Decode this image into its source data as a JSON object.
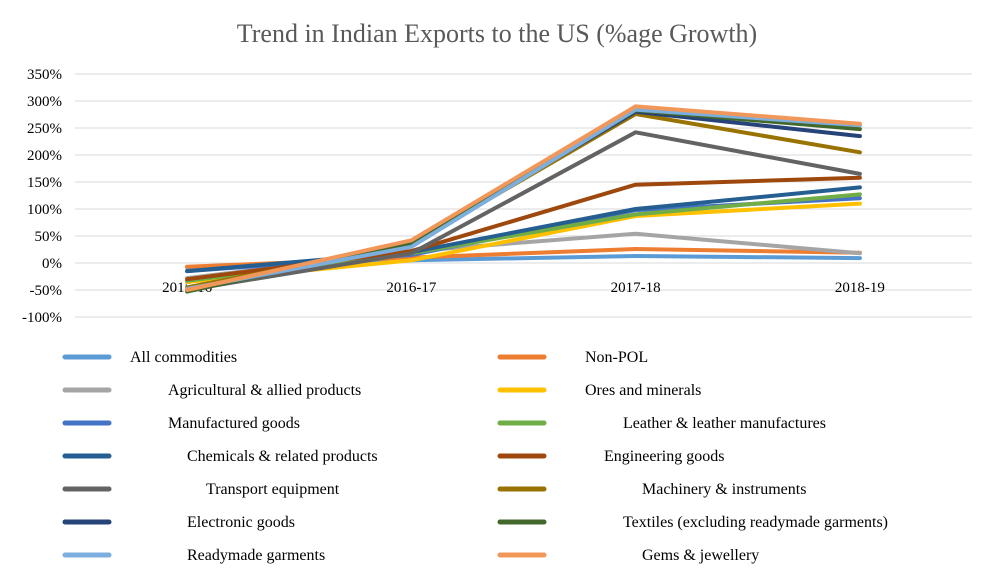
{
  "chart_data": {
    "type": "line",
    "title": "Trend in Indian Exports to the US (%age Growth)",
    "xlabel": "",
    "ylabel": "",
    "categories": [
      "2015-16",
      "2016-17",
      "2017-18",
      "2018-19"
    ],
    "ylim": [
      -100,
      350
    ],
    "yticks": [
      -100,
      -50,
      0,
      50,
      100,
      150,
      200,
      250,
      300,
      350
    ],
    "ytick_labels": [
      "-100%",
      "-50%",
      "0%",
      "50%",
      "100%",
      "150%",
      "200%",
      "250%",
      "300%",
      "350%"
    ],
    "grid": true,
    "legend_position": "bottom",
    "series": [
      {
        "name": "All commodities",
        "indent": "",
        "color": "#5B9BD5",
        "values": [
          -8,
          5,
          13,
          9
        ]
      },
      {
        "name": "Non-POL",
        "indent": "",
        "color": "#ED7D31",
        "values": [
          -7,
          10,
          26,
          19
        ]
      },
      {
        "name": "Agricultural & allied products",
        "indent": "    ",
        "color": "#A5A5A5",
        "values": [
          -28,
          22,
          54,
          18
        ]
      },
      {
        "name": "Ores and minerals",
        "indent": "",
        "color": "#FFC000",
        "values": [
          -35,
          5,
          87,
          110
        ]
      },
      {
        "name": "Manufactured goods",
        "indent": "    ",
        "color": "#4472C4",
        "values": [
          -15,
          15,
          98,
          120
        ]
      },
      {
        "name": "Leather & leather manufactures",
        "indent": "    ",
        "color": "#70AD47",
        "values": [
          -33,
          18,
          90,
          127
        ]
      },
      {
        "name": "Chemicals & related products",
        "indent": "      ",
        "color": "#255E91",
        "values": [
          -15,
          20,
          100,
          140
        ]
      },
      {
        "name": "Engineering goods",
        "indent": "  ",
        "color": "#9E480E",
        "values": [
          -30,
          22,
          145,
          158
        ]
      },
      {
        "name": "Transport equipment",
        "indent": "        ",
        "color": "#636363",
        "values": [
          -50,
          18,
          242,
          165
        ]
      },
      {
        "name": "Machinery & instruments",
        "indent": "      ",
        "color": "#997300",
        "values": [
          -45,
          35,
          276,
          205
        ]
      },
      {
        "name": "Electronic goods",
        "indent": "      ",
        "color": "#264478",
        "values": [
          -52,
          37,
          280,
          235
        ]
      },
      {
        "name": "Textiles (excluding readymade garments)",
        "indent": "    ",
        "color": "#43682B",
        "values": [
          -53,
          38,
          283,
          248
        ]
      },
      {
        "name": "Readymade garments",
        "indent": "      ",
        "color": "#7CAFDD",
        "values": [
          -48,
          30,
          284,
          255
        ]
      },
      {
        "name": "Gems & jewellery",
        "indent": "      ",
        "color": "#F1975A",
        "values": [
          -50,
          42,
          290,
          258
        ]
      }
    ]
  }
}
